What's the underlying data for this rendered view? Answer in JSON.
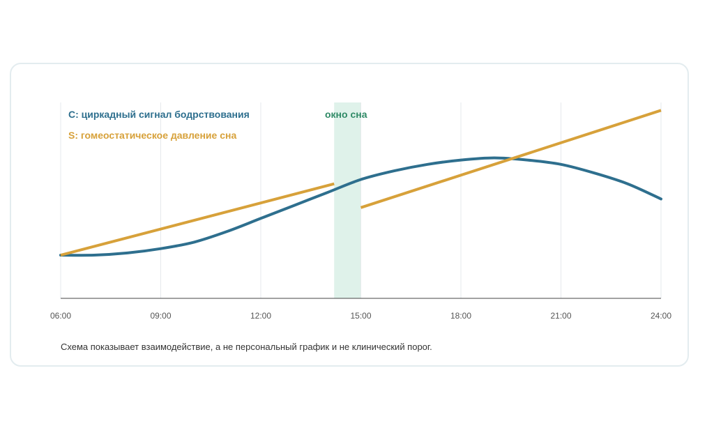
{
  "chart_data": {
    "type": "line",
    "x_ticks": [
      "06:00",
      "09:00",
      "12:00",
      "15:00",
      "18:00",
      "21:00",
      "24:00"
    ],
    "xlim": [
      6,
      24
    ],
    "sleep_window": {
      "label": "окно сна",
      "from": 14.2,
      "to": 15.0,
      "color": "#dff2ea"
    },
    "series": [
      {
        "name": "C: циркадный сигнал бодрствования",
        "color": "#2e6f8e",
        "x": [
          6,
          7,
          8,
          9,
          10,
          11,
          12,
          13,
          14,
          15,
          16,
          17,
          18,
          19,
          20,
          21,
          22,
          23,
          24
        ],
        "y": [
          0.2,
          0.2,
          0.21,
          0.23,
          0.26,
          0.31,
          0.37,
          0.43,
          0.49,
          0.55,
          0.59,
          0.62,
          0.64,
          0.65,
          0.64,
          0.62,
          0.58,
          0.53,
          0.46
        ]
      },
      {
        "name": "S: гомеостатическое давление сна",
        "color": "#d7a13a",
        "segments": [
          {
            "x": [
              6,
              14.2
            ],
            "y": [
              0.2,
              0.53
            ]
          },
          {
            "x": [
              15.0,
              24
            ],
            "y": [
              0.42,
              0.87
            ]
          }
        ]
      }
    ],
    "grid": true,
    "caption": "Схема показывает взаимодействие, а не персональный график и не клинический порог."
  }
}
